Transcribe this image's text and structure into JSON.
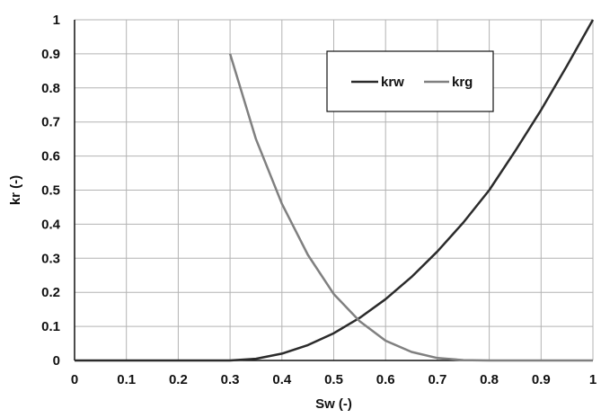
{
  "chart_data": {
    "type": "line",
    "xlabel": "Sw (-)",
    "ylabel": "kr (-)",
    "xlim": [
      0,
      1
    ],
    "ylim": [
      0,
      1
    ],
    "x_ticks": [
      "0",
      "0.1",
      "0.2",
      "0.3",
      "0.4",
      "0.5",
      "0.6",
      "0.7",
      "0.8",
      "0.9",
      "1"
    ],
    "y_ticks": [
      "0",
      "0.1",
      "0.2",
      "0.3",
      "0.4",
      "0.5",
      "0.6",
      "0.7",
      "0.8",
      "0.9",
      "1"
    ],
    "grid": true,
    "legend_position": "top-right",
    "series": [
      {
        "name": "krw",
        "color": "#2b2b2b",
        "x": [
          0,
          0.1,
          0.2,
          0.3,
          0.35,
          0.4,
          0.45,
          0.5,
          0.55,
          0.6,
          0.65,
          0.7,
          0.75,
          0.8,
          0.85,
          0.9,
          0.95,
          1.0
        ],
        "y": [
          0,
          0,
          0,
          0,
          0.005,
          0.02,
          0.045,
          0.08,
          0.125,
          0.18,
          0.245,
          0.32,
          0.405,
          0.5,
          0.615,
          0.735,
          0.865,
          1.0
        ]
      },
      {
        "name": "krg",
        "color": "#808080",
        "x": [
          0.3,
          0.35,
          0.4,
          0.45,
          0.5,
          0.55,
          0.6,
          0.65,
          0.7,
          0.75,
          0.8,
          0.9,
          1.0
        ],
        "y": [
          0.9,
          0.65,
          0.46,
          0.31,
          0.195,
          0.115,
          0.058,
          0.025,
          0.007,
          0.001,
          0,
          0,
          0
        ]
      }
    ]
  }
}
